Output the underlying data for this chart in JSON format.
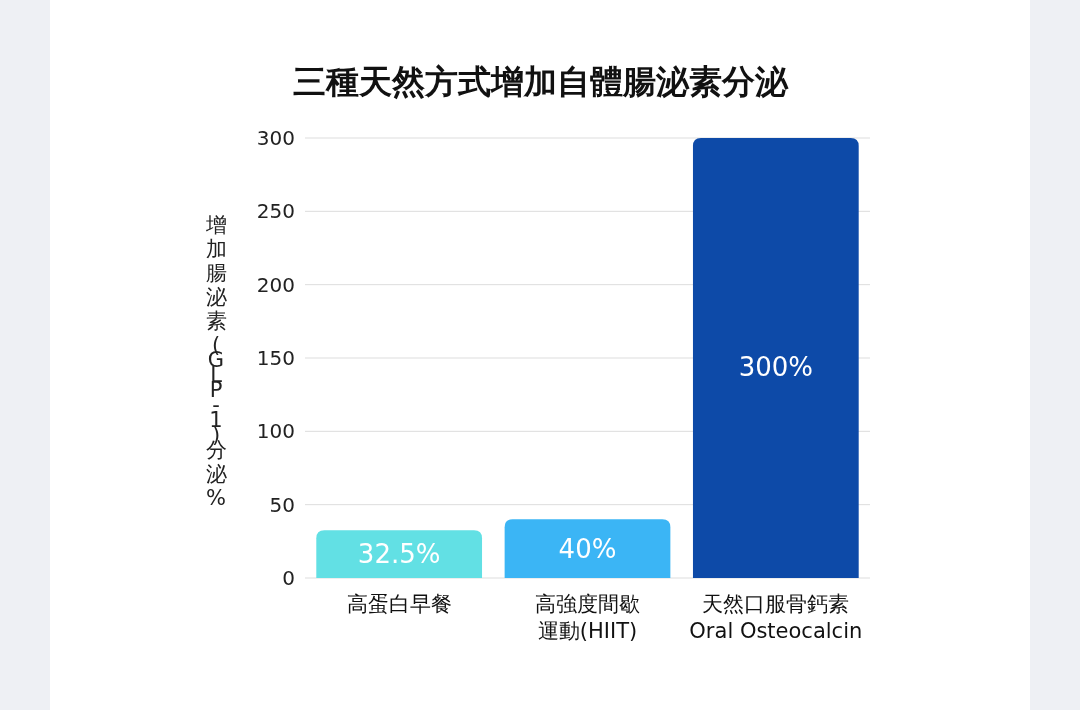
{
  "chart_data": {
    "type": "bar",
    "title": "三種天然方式增加自體腸泌素分泌",
    "ylabel": "增加腸泌素(GLP-1)分泌%",
    "categories": [
      "高蛋白早餐",
      "高強度間歇運動(HIIT)",
      "天然口服骨鈣素\nOral Osteocalcin"
    ],
    "values": [
      32.5,
      40,
      300
    ],
    "colors": [
      "#62e0e4",
      "#3bb5f5",
      "#0d4aa8"
    ],
    "value_labels": [
      "32.5%",
      "40%",
      "300%"
    ],
    "ylim": [
      0,
      300
    ],
    "yticks": [
      0,
      50,
      100,
      150,
      200,
      250,
      300
    ],
    "grid": "y"
  }
}
